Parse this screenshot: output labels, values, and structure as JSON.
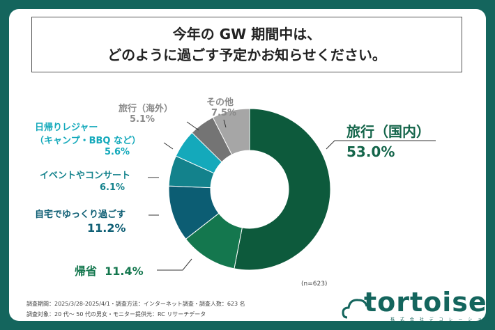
{
  "title": {
    "line1": "今年の GW 期間中は、",
    "line2": "どのように過ごす予定かお知らせください。"
  },
  "chart_data": {
    "type": "pie",
    "donut": true,
    "slices": [
      {
        "label": "旅行（国内）",
        "value": 53.0,
        "pct_label": "53.0%",
        "color": "#0d5a3c"
      },
      {
        "label": "帰省",
        "value": 11.4,
        "pct_label": "11.4%",
        "color": "#14774e"
      },
      {
        "label": "自宅でゆっくり過ごす",
        "value": 11.2,
        "pct_label": "11.2%",
        "color": "#0c5d73"
      },
      {
        "label": "イベントやコンサート",
        "value": 6.1,
        "pct_label": "6.1%",
        "color": "#13828c"
      },
      {
        "label": "日帰りレジャー（キャンプ・BBQ など）",
        "label_line1": "日帰りレジャー",
        "label_line2": "（キャンプ・BBQ など）",
        "value": 5.6,
        "pct_label": "5.6%",
        "color": "#14a9bb"
      },
      {
        "label": "旅行（海外）",
        "value": 5.1,
        "pct_label": "5.1%",
        "color": "#747474"
      },
      {
        "label": "その他",
        "value": 7.5,
        "pct_label": "7.5%",
        "color": "#a6a6a6"
      }
    ],
    "sample_size": "(n=623)"
  },
  "footer": {
    "line1": "調査期間：2025/3/28-2025/4/1・調査方法：インターネット調査・調査人数：623 名",
    "line2": "調査対象：20 代～ 50 代の男女・モニター提供元：RC リサーチデータ"
  },
  "logo": {
    "text": "tortoise",
    "subtext": "株 式 会 社 デ コ レ ー シ ョ ン"
  },
  "colors": {
    "frame": "#14655d",
    "dark_green_text": "#14654a",
    "teal_text": "#13828c",
    "gray_text": "#8a8a8a"
  }
}
